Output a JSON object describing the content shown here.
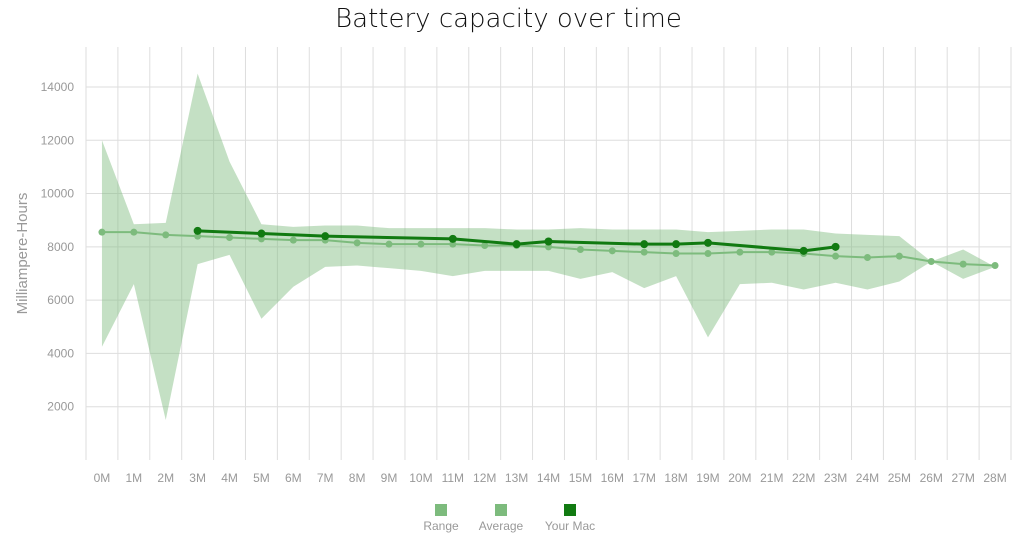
{
  "chart_data": {
    "type": "line",
    "title": "Battery capacity over time",
    "xlabel": "",
    "ylabel": "Milliampere-Hours",
    "ylim": [
      0,
      15500
    ],
    "yticks": [
      2000,
      4000,
      6000,
      8000,
      10000,
      12000,
      14000
    ],
    "categories": [
      "0M",
      "1M",
      "2M",
      "3M",
      "4M",
      "5M",
      "6M",
      "7M",
      "8M",
      "9M",
      "10M",
      "11M",
      "12M",
      "13M",
      "14M",
      "15M",
      "16M",
      "17M",
      "18M",
      "19M",
      "20M",
      "21M",
      "22M",
      "23M",
      "24M",
      "25M",
      "26M",
      "27M",
      "28M"
    ],
    "grid": true,
    "legend_position": "bottom-center",
    "series": [
      {
        "name": "Range",
        "kind": "band",
        "color": "#7dbb7d",
        "upper": [
          12000,
          8850,
          8900,
          14500,
          11200,
          8850,
          8750,
          8800,
          8800,
          8700,
          8700,
          8700,
          8700,
          8650,
          8650,
          8700,
          8650,
          8650,
          8650,
          8550,
          8600,
          8650,
          8650,
          8500,
          8450,
          8400,
          7450,
          7900,
          7250
        ],
        "lower": [
          4250,
          6600,
          1500,
          7350,
          7700,
          5300,
          6500,
          7250,
          7300,
          7200,
          7100,
          6900,
          7100,
          7100,
          7100,
          6800,
          7050,
          6450,
          6900,
          4600,
          6600,
          6650,
          6400,
          6650,
          6400,
          6700,
          7450,
          6800,
          7250
        ]
      },
      {
        "name": "Average",
        "kind": "line",
        "color": "#7dbb7d",
        "values": [
          8550,
          8550,
          8450,
          8400,
          8350,
          8300,
          8250,
          8250,
          8150,
          8100,
          8100,
          8100,
          8050,
          8050,
          8000,
          7900,
          7850,
          7800,
          7750,
          7750,
          7800,
          7800,
          7750,
          7650,
          7600,
          7650,
          7450,
          7350,
          7300
        ]
      },
      {
        "name": "Your Mac",
        "kind": "line",
        "color": "#117a11",
        "values": [
          null,
          null,
          null,
          8600,
          null,
          8500,
          null,
          8400,
          null,
          null,
          null,
          8300,
          null,
          8100,
          8200,
          null,
          null,
          8100,
          8100,
          8150,
          null,
          null,
          7850,
          8000,
          null,
          null,
          null,
          null,
          null
        ],
        "marker_months": [
          "3M",
          "5M",
          "7M",
          "11M",
          "13M",
          "14M",
          "17M",
          "18M",
          "19M",
          "22M",
          "23M"
        ]
      }
    ]
  }
}
